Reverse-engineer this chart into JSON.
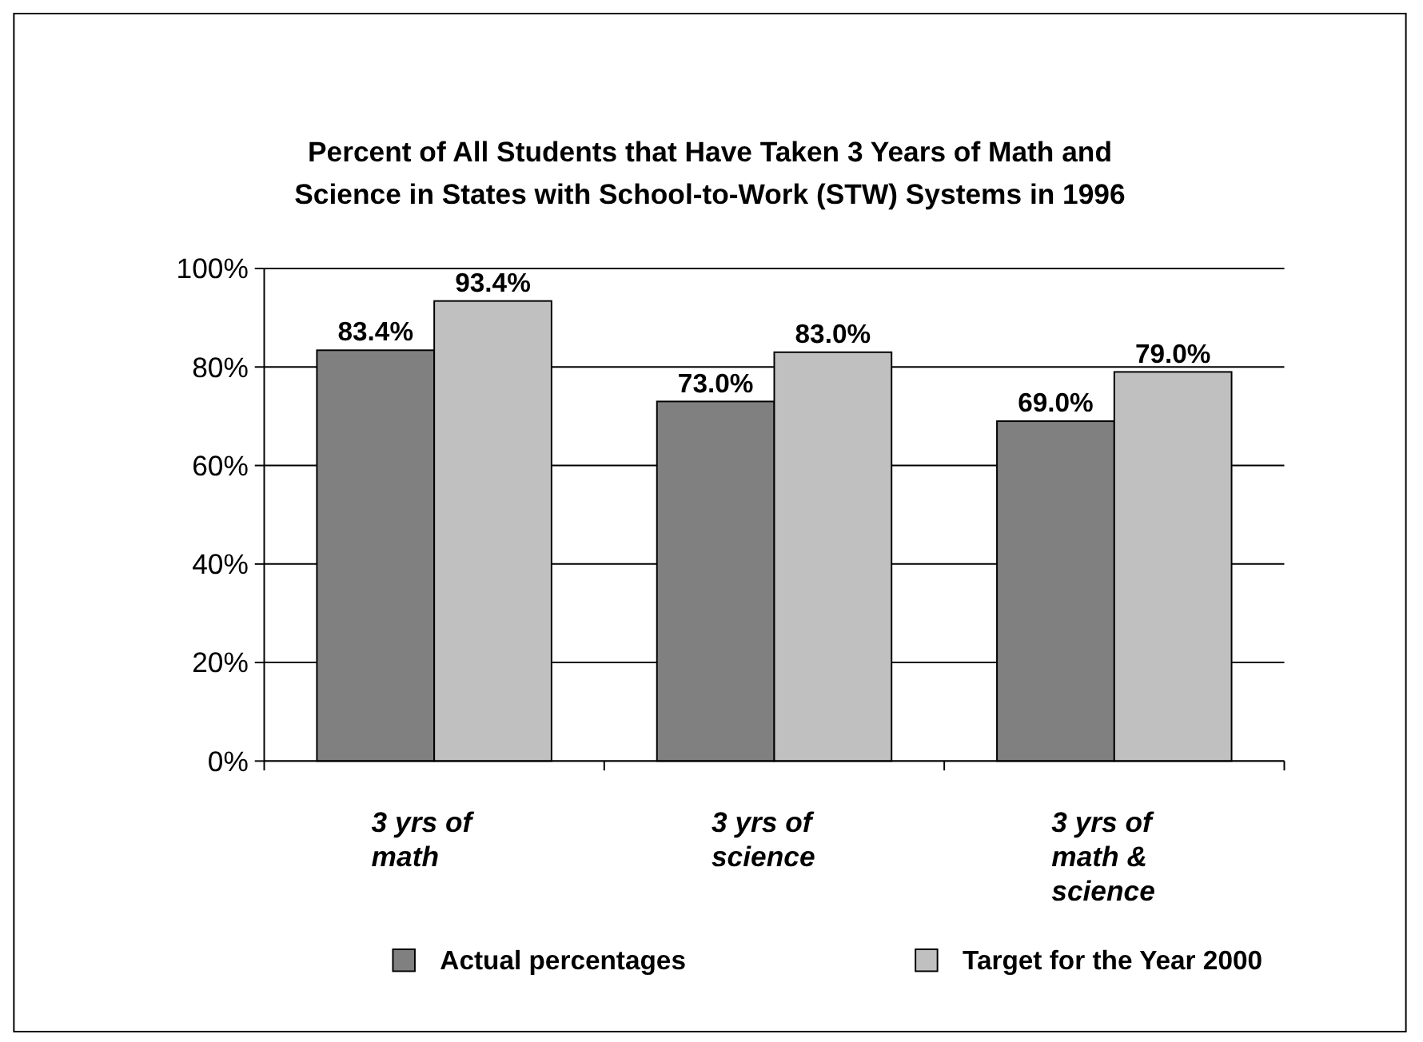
{
  "chart_data": {
    "type": "bar",
    "title": "Percent of All Students that Have Taken 3 Years of Math and Science in States with School-to-Work (STW) Systems in 1996",
    "categories": [
      "3 yrs of math",
      "3 yrs of science",
      "3 yrs of math & science"
    ],
    "series": [
      {
        "name": "Actual percentages",
        "color": "#808080",
        "values": [
          83.4,
          73.0,
          69.0
        ],
        "value_labels": [
          "83.4%",
          "73.0%",
          "69.0%"
        ]
      },
      {
        "name": "Target for the Year 2000",
        "color": "#c0c0c0",
        "values": [
          93.4,
          83.0,
          79.0
        ],
        "value_labels": [
          "93.4%",
          "83.0%",
          "79.0%"
        ]
      }
    ],
    "ylim": [
      0,
      100
    ],
    "yticks": [
      {
        "value": 0,
        "label": "0%"
      },
      {
        "value": 20,
        "label": "20%"
      },
      {
        "value": 40,
        "label": "40%"
      },
      {
        "value": 60,
        "label": "60%"
      },
      {
        "value": 80,
        "label": "80%"
      },
      {
        "value": 100,
        "label": "100%"
      }
    ],
    "grid": "y",
    "legend": "bottom"
  }
}
